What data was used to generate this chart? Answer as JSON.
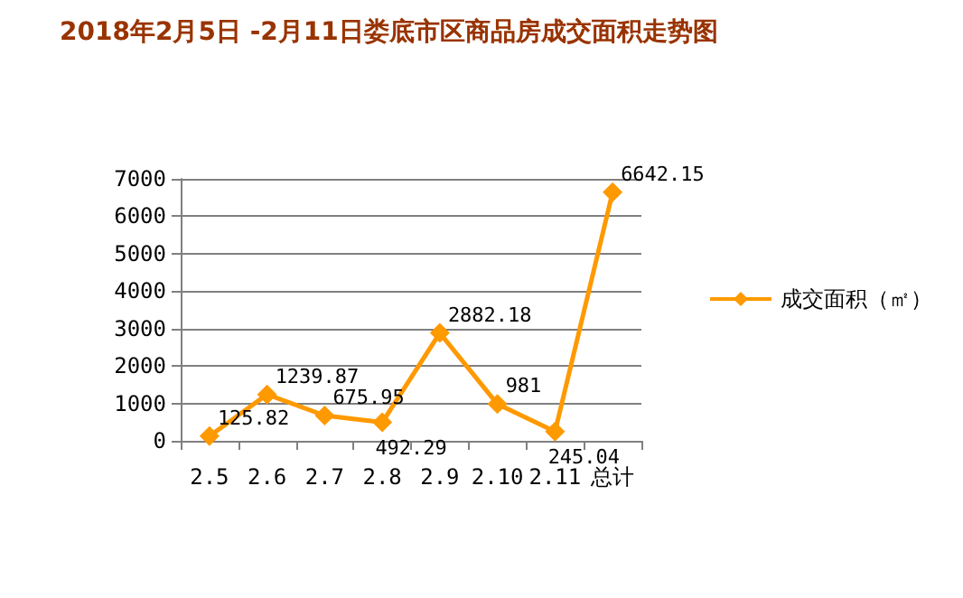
{
  "chart_data": {
    "type": "line",
    "title": "2018年2月5日 -2月11日娄底市区商品房成交面积走势图",
    "categories": [
      "2.5",
      "2.6",
      "2.7",
      "2.8",
      "2.9",
      "2.10",
      "2.11",
      "总计"
    ],
    "series": [
      {
        "name": "成交面积（㎡）",
        "color": "#ff9900",
        "values": [
          125.82,
          1239.87,
          675.95,
          492.29,
          2882.18,
          981,
          245.04,
          6642.15
        ]
      }
    ],
    "ylim": [
      0,
      7000
    ],
    "yticks": [
      0,
      1000,
      2000,
      3000,
      4000,
      5000,
      6000,
      7000
    ],
    "grid": "y",
    "legend": "right",
    "marker": "diamond",
    "line_style": "solid",
    "data_labels": true
  }
}
